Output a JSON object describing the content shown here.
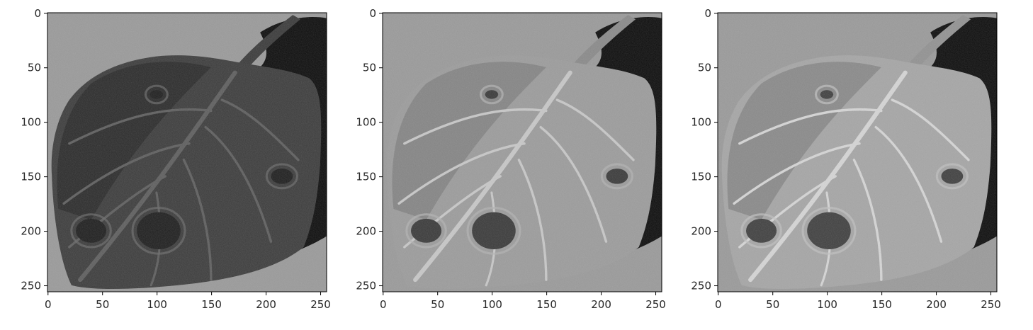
{
  "chart_data": [
    {
      "type": "image",
      "colormap": "gray",
      "variant": "channel-1-dark",
      "xlim": [
        0,
        256
      ],
      "ylim": [
        256,
        0
      ],
      "xticks": [
        "0",
        "50",
        "100",
        "150",
        "200",
        "250"
      ],
      "yticks": [
        "0",
        "50",
        "100",
        "150",
        "200",
        "250"
      ]
    },
    {
      "type": "image",
      "colormap": "gray",
      "variant": "channel-2-light",
      "xlim": [
        0,
        256
      ],
      "ylim": [
        256,
        0
      ],
      "xticks": [
        "0",
        "50",
        "100",
        "150",
        "200",
        "250"
      ],
      "yticks": [
        "0",
        "50",
        "100",
        "150",
        "200",
        "250"
      ]
    },
    {
      "type": "image",
      "colormap": "gray",
      "variant": "channel-3-light",
      "xlim": [
        0,
        256
      ],
      "ylim": [
        256,
        0
      ],
      "xticks": [
        "0",
        "50",
        "100",
        "150",
        "200",
        "250"
      ],
      "yticks": [
        "0",
        "50",
        "100",
        "150",
        "200",
        "250"
      ]
    }
  ],
  "colors": {
    "background": "#9a9a9a",
    "shadow": "#0c0c0c",
    "axis": "#000000"
  }
}
